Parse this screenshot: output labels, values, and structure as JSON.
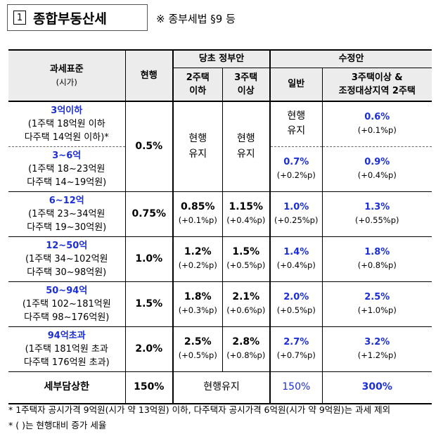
{
  "title": {
    "number": "1",
    "text": "종합부동산세",
    "reference": "※ 종부세법 §9 등"
  },
  "table": {
    "header": {
      "tax_base": "과세표준",
      "tax_base_sub": "(시가)",
      "current": "현행",
      "original": "당초 정부안",
      "original_sub1a": "2주택",
      "original_sub1b": "이하",
      "original_sub2a": "3주택",
      "original_sub2b": "이상",
      "revised": "수정안",
      "revised_sub1": "일반",
      "revised_sub2a": "3주택이상 &",
      "revised_sub2b": "조정대상지역 2주택"
    },
    "rows": [
      {
        "range": "3억이하",
        "line1": "(1주택 18억원 이하",
        "line2": "다주택 14억원 이하)*",
        "revised_general": "현행",
        "revised_general2": "유지",
        "revised_multi": "0.6%",
        "revised_multi_diff": "(+0.1%p)"
      },
      {
        "range": "3~6억",
        "line1": "(1주택 18~23억원",
        "line2": "다주택 14~19억원)",
        "revised_general": "0.7%",
        "revised_general_diff": "(+0.2%p)",
        "revised_multi": "0.9%",
        "revised_multi_diff": "(+0.4%p)"
      },
      {
        "range": "6~12억",
        "line1": "(1주택 23~34억원",
        "line2": "다주택 19~30억원)",
        "current": "0.75%",
        "orig_two": "0.85%",
        "orig_two_diff": "(+0.1%p)",
        "orig_three": "1.15%",
        "orig_three_diff": "(+0.4%p)",
        "revised_general": "1.0%",
        "revised_general_diff": "(+0.25%p)",
        "revised_multi": "1.3%",
        "revised_multi_diff": "(+0.55%p)"
      },
      {
        "range": "12~50억",
        "line1": "(1주택 34~102억원",
        "line2": "다주택 30~98억원)",
        "current": "1.0%",
        "orig_two": "1.2%",
        "orig_two_diff": "(+0.2%p)",
        "orig_three": "1.5%",
        "orig_three_diff": "(+0.5%p)",
        "revised_general": "1.4%",
        "revised_general_diff": "(+0.4%p)",
        "revised_multi": "1.8%",
        "revised_multi_diff": "(+0.8%p)"
      },
      {
        "range": "50~94억",
        "line1": "(1주택 102~181억원",
        "line2": "다주택 98~176억원)",
        "current": "1.5%",
        "orig_two": "1.8%",
        "orig_two_diff": "(+0.3%p)",
        "orig_three": "2.1%",
        "orig_three_diff": "(+0.6%p)",
        "revised_general": "2.0%",
        "revised_general_diff": "(+0.5%p)",
        "revised_multi": "2.5%",
        "revised_multi_diff": "(+1.0%p)"
      },
      {
        "range": "94억초과",
        "line1": "(1주택 181억원 초과",
        "line2": "다주택 176억원 초과)",
        "current": "2.0%",
        "orig_two": "2.5%",
        "orig_two_diff": "(+0.5%p)",
        "orig_three": "2.8%",
        "orig_three_diff": "(+0.8%p)",
        "revised_general": "2.7%",
        "revised_general_diff": "(+0.7%p)",
        "revised_multi": "3.2%",
        "revised_multi_diff": "(+1.2%p)"
      }
    ],
    "merged": {
      "current_top": "0.5%",
      "orig_keep_a": "현행",
      "orig_keep_b": "유지"
    },
    "ceiling": {
      "label": "세부담상한",
      "current": "150%",
      "original": "현행유지",
      "revised_general": "150%",
      "revised_multi": "300%"
    }
  },
  "footnotes": [
    "* 1주택자 공시가격 9억원(시가 약 13억원) 이하, 다주택자 공시가격 6억원(시가 약 9억원)는 과세 제외",
    "* (  )는 현행대비 증가 세율"
  ],
  "colors": {
    "accent_blue": "#1c2fd6",
    "header_bg": "#ececec"
  }
}
